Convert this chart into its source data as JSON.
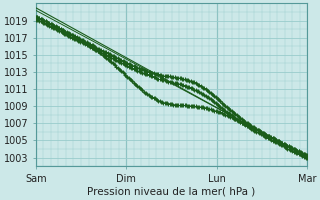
{
  "background_color": "#cce8e8",
  "grid_color": "#99cccc",
  "line_color": "#1a5c1a",
  "title": "Pression niveau de la mer( hPa )",
  "x_ticks_labels": [
    "Sam",
    "Dim",
    "Lun",
    "Mar"
  ],
  "x_ticks_pos": [
    0,
    72,
    144,
    216
  ],
  "ylim": [
    1002.0,
    1021.0
  ],
  "yticks": [
    1003,
    1005,
    1007,
    1009,
    1011,
    1013,
    1015,
    1017,
    1019
  ],
  "total_hours": 216,
  "figsize": [
    3.2,
    2.0
  ],
  "dpi": 100
}
